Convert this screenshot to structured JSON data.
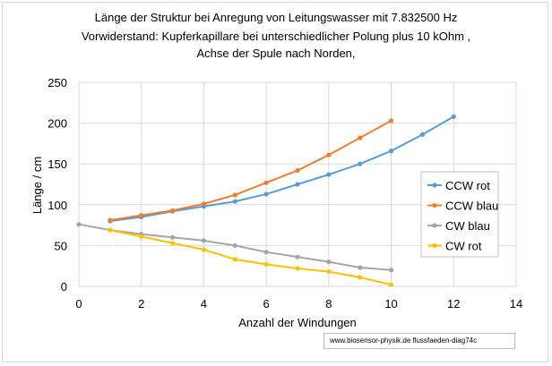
{
  "chart_data": {
    "type": "line",
    "title_lines": [
      "Länge der Struktur bei Anregung von Leitungswasser mit  7.832500 Hz",
      "Vorwiderstand: Kupferkapillare  bei unterschiedlicher Polung  plus 10 kOhm ,",
      "Achse der Spule nach Norden,"
    ],
    "xlabel": "Anzahl der Windungen",
    "ylabel": "Länge / cm",
    "xlim": [
      0,
      14
    ],
    "ylim": [
      0,
      250
    ],
    "x_ticks": [
      "0",
      "2",
      "4",
      "6",
      "8",
      "10",
      "12",
      "14"
    ],
    "y_ticks": [
      "0",
      "50",
      "100",
      "150",
      "200",
      "250"
    ],
    "grid": true,
    "legend_position": "right",
    "series": [
      {
        "name": "CCW rot",
        "color": "#5b9bd5",
        "x": [
          1,
          2,
          3,
          4,
          5,
          6,
          7,
          8,
          9,
          10,
          11,
          12
        ],
        "y": [
          80,
          85,
          92,
          98,
          104,
          113,
          125,
          137,
          150,
          166,
          186,
          208
        ]
      },
      {
        "name": "CCW blau",
        "color": "#ed7d31",
        "x": [
          1,
          2,
          3,
          4,
          5,
          6,
          7,
          8,
          9,
          10
        ],
        "y": [
          81,
          87,
          93,
          101,
          112,
          127,
          142,
          161,
          182,
          203
        ]
      },
      {
        "name": "CW blau",
        "color": "#a5a5a5",
        "x": [
          0,
          1,
          2,
          3,
          4,
          5,
          6,
          7,
          8,
          9,
          10
        ],
        "y": [
          76,
          69,
          64,
          60,
          56,
          50,
          42,
          36,
          30,
          23,
          20
        ]
      },
      {
        "name": "CW rot",
        "color": "#ffc000",
        "x": [
          1,
          2,
          3,
          4,
          5,
          6,
          7,
          8,
          9,
          10
        ],
        "y": [
          69,
          61,
          53,
          45,
          33,
          27,
          22,
          18,
          11,
          2
        ]
      }
    ]
  },
  "credit": "www.biosensor-physik.de  flussfaeden-diag74c"
}
